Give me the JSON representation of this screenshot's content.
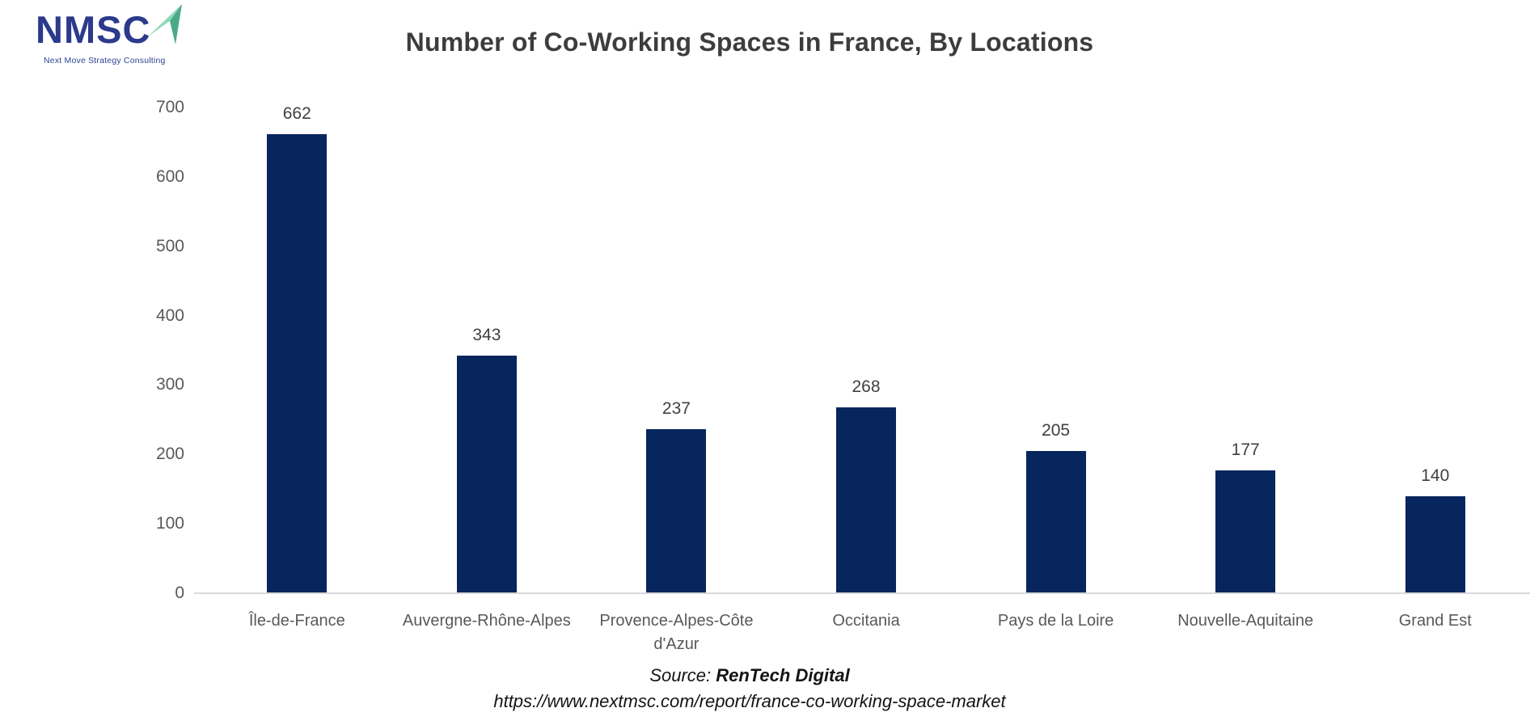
{
  "logo": {
    "acronym": "NMSC",
    "tagline": "Next Move Strategy Consulting",
    "navy": "#2b3a8c",
    "arrow_light": "#92d8b9",
    "arrow_dark": "#4aa98a"
  },
  "title": "Number of Co-Working Spaces in France, By Locations",
  "chart_data": {
    "type": "bar",
    "title": "Number of Co-Working Spaces in France, By Locations",
    "categories": [
      "Île-de-France",
      "Auvergne-Rhône-Alpes",
      "Provence-Alpes-Côte d'Azur",
      "Occitania",
      "Pays de la Loire",
      "Nouvelle-Aquitaine",
      "Grand Est"
    ],
    "values": [
      662,
      343,
      237,
      268,
      205,
      177,
      140
    ],
    "xlabel": "",
    "ylabel": "",
    "ylim": [
      0,
      700
    ],
    "ytick_step": 100,
    "bar_color": "#08265e",
    "grid": false,
    "legend": false,
    "value_labels": true,
    "axis_line_color": "#d9d9d9",
    "tick_label_color": "#595959",
    "value_label_color": "#404040"
  },
  "footer": {
    "source_prefix": "Source: ",
    "source_name": "RenTech Digital",
    "url": "https://www.nextmsc.com/report/france-co-working-space-market"
  }
}
